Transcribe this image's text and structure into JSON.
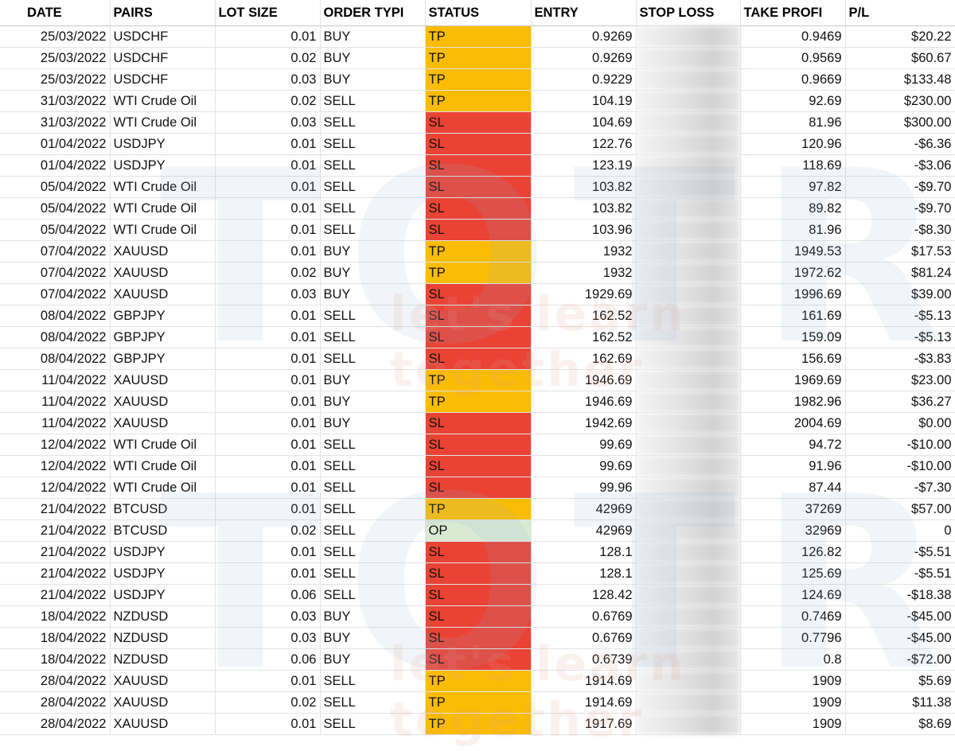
{
  "headers": [
    "DATE",
    "PAIRS",
    "LOT SIZE",
    "ORDER TYPI",
    "STATUS",
    "ENTRY",
    "STOP LOSS",
    "TAKE PROFI",
    "P/L"
  ],
  "watermark": {
    "brand": "TOTRIEU",
    "tagline": "let's learn together"
  },
  "colors": {
    "tp": "#fbbc04",
    "sl": "#ea4335",
    "op": "#d9ead3",
    "red_text": "#e60000"
  },
  "rows": [
    {
      "date": "25/03/2022",
      "pair": "USDCHF",
      "lot": "0.01",
      "type": "BUY",
      "status": "TP",
      "entry": "0.9269",
      "tp": "0.9469",
      "pl": "$20.22"
    },
    {
      "date": "25/03/2022",
      "pair": "USDCHF",
      "lot": "0.02",
      "type": "BUY",
      "status": "TP",
      "entry": "0.9269",
      "tp": "0.9569",
      "pl": "$60.67"
    },
    {
      "date": "25/03/2022",
      "pair": "USDCHF",
      "lot": "0.03",
      "type": "BUY",
      "status": "TP",
      "entry": "0.9229",
      "tp": "0.9669",
      "pl": "$133.48"
    },
    {
      "date": "31/03/2022",
      "pair": "WTI Crude Oil",
      "lot": "0.02",
      "type": "SELL",
      "status": "TP",
      "entry": "104.19",
      "tp": "92.69",
      "pl": "$230.00"
    },
    {
      "date": "31/03/2022",
      "pair": "WTI Crude Oil",
      "lot": "0.03",
      "type": "SELL",
      "status": "SL",
      "entry": "104.69",
      "tp": "81.96",
      "pl": "$300.00"
    },
    {
      "date": "01/04/2022",
      "pair": "USDJPY",
      "lot": "0.01",
      "type": "SELL",
      "status": "SL",
      "entry": "122.76",
      "tp": "120.96",
      "pl": "-$6.36"
    },
    {
      "date": "01/04/2022",
      "pair": "USDJPY",
      "lot": "0.01",
      "type": "SELL",
      "status": "SL",
      "entry": "123.19",
      "tp": "118.69",
      "pl": "-$3.06"
    },
    {
      "date": "05/04/2022",
      "pair": "WTI Crude Oil",
      "lot": "0.01",
      "type": "SELL",
      "status": "SL",
      "entry": "103.82",
      "tp": "97.82",
      "pl": "-$9.70"
    },
    {
      "date": "05/04/2022",
      "pair": "WTI Crude Oil",
      "lot": "0.01",
      "type": "SELL",
      "status": "SL",
      "entry": "103.82",
      "tp": "89.82",
      "pl": "-$9.70"
    },
    {
      "date": "05/04/2022",
      "pair": "WTI Crude Oil",
      "lot": "0.01",
      "type": "SELL",
      "status": "SL",
      "entry": "103.96",
      "tp": "81.96",
      "pl": "-$8.30"
    },
    {
      "date": "07/04/2022",
      "pair": "XAUUSD",
      "lot": "0.01",
      "type": "BUY",
      "status": "TP",
      "entry": "1932",
      "tp": "1949.53",
      "pl": "$17.53"
    },
    {
      "date": "07/04/2022",
      "pair": "XAUUSD",
      "lot": "0.02",
      "type": "BUY",
      "status": "TP",
      "entry": "1932",
      "tp": "1972.62",
      "pl": "$81.24"
    },
    {
      "date": "07/04/2022",
      "pair": "XAUUSD",
      "lot": "0.03",
      "type": "BUY",
      "status": "SL",
      "entry": "1929.69",
      "tp": "1996.69",
      "pl": "$39.00"
    },
    {
      "date": "08/04/2022",
      "pair": "GBPJPY",
      "lot": "0.01",
      "type": "SELL",
      "status": "SL",
      "entry": "162.52",
      "tp": "161.69",
      "pl": "-$5.13",
      "entry_red": true,
      "grey": true
    },
    {
      "date": "08/04/2022",
      "pair": "GBPJPY",
      "lot": "0.01",
      "type": "SELL",
      "status": "SL",
      "entry": "162.52",
      "tp": "159.09",
      "pl": "-$5.13",
      "entry_red": true,
      "grey": true
    },
    {
      "date": "08/04/2022",
      "pair": "GBPJPY",
      "lot": "0.01",
      "type": "SELL",
      "status": "SL",
      "entry": "162.69",
      "tp": "156.69",
      "pl": "-$3.83",
      "entry_red": true,
      "grey": true
    },
    {
      "date": "11/04/2022",
      "pair": "XAUUSD",
      "lot": "0.01",
      "type": "BUY",
      "status": "TP",
      "entry": "1946.69",
      "tp": "1969.69",
      "pl": "$23.00"
    },
    {
      "date": "11/04/2022",
      "pair": "XAUUSD",
      "lot": "0.01",
      "type": "BUY",
      "status": "TP",
      "entry": "1946.69",
      "tp": "1982.96",
      "pl": "$36.27"
    },
    {
      "date": "11/04/2022",
      "pair": "XAUUSD",
      "lot": "0.01",
      "type": "BUY",
      "status": "SL",
      "entry": "1942.69",
      "tp": "2004.69",
      "pl": "$0.00"
    },
    {
      "date": "12/04/2022",
      "pair": "WTI Crude Oil",
      "lot": "0.01",
      "type": "SELL",
      "status": "SL",
      "entry": "99.69",
      "tp": "94.72",
      "pl": "-$10.00",
      "entry_red": true,
      "indent": true
    },
    {
      "date": "12/04/2022",
      "pair": "WTI Crude Oil",
      "lot": "0.01",
      "type": "SELL",
      "status": "SL",
      "entry": "99.69",
      "tp": "91.96",
      "pl": "-$10.00",
      "entry_red": true,
      "indent": true
    },
    {
      "date": "12/04/2022",
      "pair": "WTI Crude Oil",
      "lot": "0.01",
      "type": "SELL",
      "status": "SL",
      "entry": "99.96",
      "tp": "87.44",
      "pl": "-$7.30",
      "entry_red": true,
      "indent": true
    },
    {
      "date": "21/04/2022",
      "pair": "BTCUSD",
      "lot": "0.01",
      "type": "SELL",
      "status": "TP",
      "entry": "42969",
      "tp": "37269",
      "pl": "$57.00",
      "entry_red": true,
      "grey": true
    },
    {
      "date": "21/04/2022",
      "pair": "BTCUSD",
      "lot": "0.02",
      "type": "SELL",
      "status": "OP",
      "entry": "42969",
      "tp": "32969",
      "pl": "0",
      "entry_red": true,
      "grey": true
    },
    {
      "date": "21/04/2022",
      "pair": "USDJPY",
      "lot": "0.01",
      "type": "SELL",
      "status": "SL",
      "entry": "128.1",
      "tp": "126.82",
      "pl": "-$5.51"
    },
    {
      "date": "21/04/2022",
      "pair": "USDJPY",
      "lot": "0.01",
      "type": "SELL",
      "status": "SL",
      "entry": "128.1",
      "tp": "125.69",
      "pl": "-$5.51"
    },
    {
      "date": "21/04/2022",
      "pair": "USDJPY",
      "lot": "0.06",
      "type": "SELL",
      "status": "SL",
      "entry": "128.42",
      "tp": "124.69",
      "pl": "-$18.38"
    },
    {
      "date": "18/04/2022",
      "pair": "NZDUSD",
      "lot": "0.03",
      "type": "BUY",
      "status": "SL",
      "entry": "0.6769",
      "tp": "0.7469",
      "pl": "-$45.00",
      "entry_red": true
    },
    {
      "date": "18/04/2022",
      "pair": "NZDUSD",
      "lot": "0.03",
      "type": "BUY",
      "status": "SL",
      "entry": "0.6769",
      "tp": "0.7796",
      "pl": "-$45.00",
      "entry_red": true
    },
    {
      "date": "18/04/2022",
      "pair": "NZDUSD",
      "lot": "0.06",
      "type": "BUY",
      "status": "SL",
      "entry": "0.6739",
      "tp": "0.8",
      "pl": "-$72.00",
      "entry_red": true
    },
    {
      "date": "28/04/2022",
      "pair": "XAUUSD",
      "lot": "0.01",
      "type": "SELL",
      "status": "TP",
      "entry": "1914.69",
      "tp": "1909",
      "pl": "$5.69"
    },
    {
      "date": "28/04/2022",
      "pair": "XAUUSD",
      "lot": "0.02",
      "type": "SELL",
      "status": "TP",
      "entry": "1914.69",
      "tp": "1909",
      "pl": "$11.38"
    },
    {
      "date": "28/04/2022",
      "pair": "XAUUSD",
      "lot": "0.01",
      "type": "SELL",
      "status": "TP",
      "entry": "1917.69",
      "tp": "1909",
      "pl": "$8.69"
    }
  ]
}
